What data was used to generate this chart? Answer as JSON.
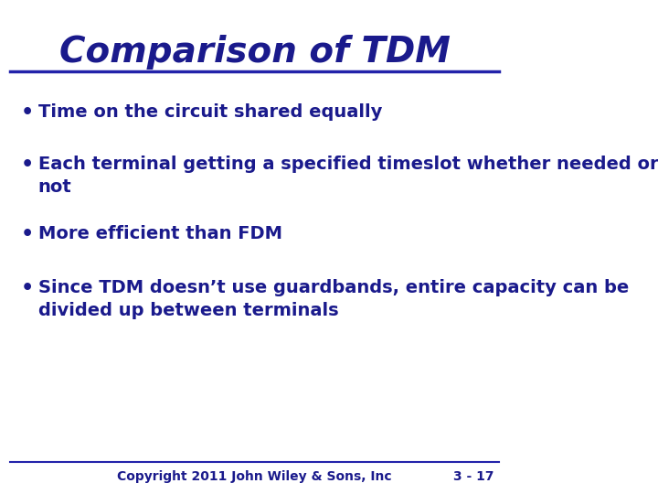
{
  "title": "Comparison of TDM",
  "title_color": "#1a1a8c",
  "title_fontsize": 28,
  "title_fontweight": "bold",
  "title_fontstyle": "italic",
  "background_color": "#ffffff",
  "text_color": "#1a1a8c",
  "line_color": "#2222aa",
  "bullet_points": [
    "Time on the circuit shared equally",
    "Each terminal getting a specified timeslot whether needed or\nnot",
    "More efficient than FDM",
    "Since TDM doesn’t use guardbands, entire capacity can be\ndivided up between terminals"
  ],
  "bullet_fontsize": 14,
  "bullet_fontweight": "bold",
  "footer_left": "Copyright 2011 John Wiley & Sons, Inc",
  "footer_right": "3 - 17",
  "footer_fontsize": 10,
  "footer_color": "#1a1a8c"
}
